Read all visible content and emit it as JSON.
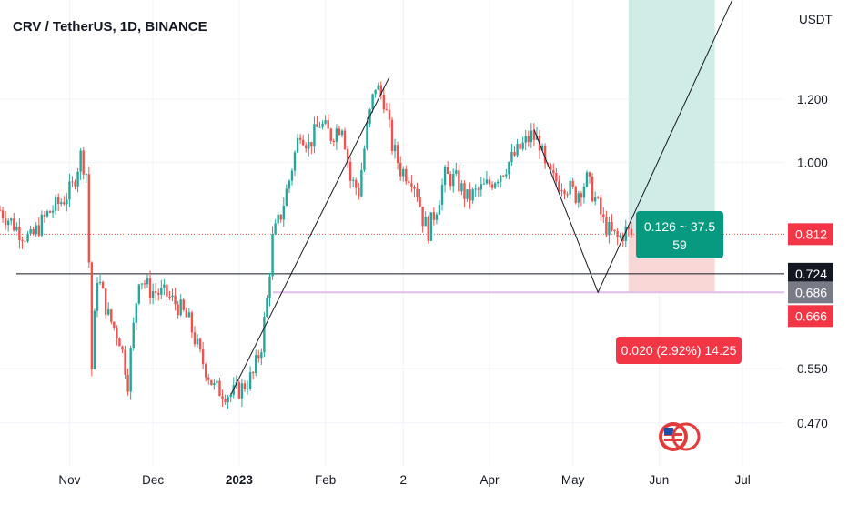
{
  "chart_data": {
    "type": "candlestick",
    "title": "CRV / TetherUS, 1D, BINANCE",
    "currency": "USDT",
    "y_scale": "log",
    "ylim": [
      0.415,
      1.6
    ],
    "y_ticks": [
      {
        "value": 1.2,
        "label": "1.200"
      },
      {
        "value": 1.0,
        "label": "1.000"
      },
      {
        "value": 0.55,
        "label": "0.550"
      },
      {
        "value": 0.47,
        "label": "0.470"
      }
    ],
    "x_range": [
      "2022-10-07",
      "2023-07-16"
    ],
    "x_ticks": [
      {
        "date": "2022-11-01",
        "label": "Nov",
        "bold": false
      },
      {
        "date": "2022-12-01",
        "label": "Dec",
        "bold": false
      },
      {
        "date": "2023-01-01",
        "label": "2023",
        "bold": true
      },
      {
        "date": "2023-02-01",
        "label": "Feb",
        "bold": false
      },
      {
        "date": "2023-03-01",
        "label": "2",
        "bold": false
      },
      {
        "date": "2023-04-01",
        "label": "Apr",
        "bold": false
      },
      {
        "date": "2023-05-01",
        "label": "May",
        "bold": false
      },
      {
        "date": "2023-06-01",
        "label": "Jun",
        "bold": false
      },
      {
        "date": "2023-07-01",
        "label": "Jul",
        "bold": false
      }
    ],
    "price_path": [
      [
        "2022-10-07",
        0.87
      ],
      [
        "2022-10-14",
        0.82
      ],
      [
        "2022-10-18",
        0.8
      ],
      [
        "2022-10-24",
        0.86
      ],
      [
        "2022-10-30",
        0.9
      ],
      [
        "2022-11-02",
        0.93
      ],
      [
        "2022-11-05",
        1.02
      ],
      [
        "2022-11-07",
        0.97
      ],
      [
        "2022-11-08",
        0.75
      ],
      [
        "2022-11-09",
        0.55
      ],
      [
        "2022-11-11",
        0.72
      ],
      [
        "2022-11-15",
        0.64
      ],
      [
        "2022-11-19",
        0.6
      ],
      [
        "2022-11-22",
        0.53
      ],
      [
        "2022-11-24",
        0.62
      ],
      [
        "2022-11-26",
        0.72
      ],
      [
        "2022-11-30",
        0.69
      ],
      [
        "2022-12-06",
        0.68
      ],
      [
        "2022-12-10",
        0.66
      ],
      [
        "2022-12-14",
        0.63
      ],
      [
        "2022-12-18",
        0.57
      ],
      [
        "2022-12-23",
        0.52
      ],
      [
        "2022-12-29",
        0.51
      ],
      [
        "2023-01-02",
        0.52
      ],
      [
        "2023-01-06",
        0.54
      ],
      [
        "2023-01-09",
        0.59
      ],
      [
        "2023-01-11",
        0.67
      ],
      [
        "2023-01-13",
        0.8
      ],
      [
        "2023-01-16",
        0.86
      ],
      [
        "2023-01-19",
        0.95
      ],
      [
        "2023-01-23",
        1.1
      ],
      [
        "2023-01-26",
        1.05
      ],
      [
        "2023-01-30",
        1.12
      ],
      [
        "2023-02-03",
        1.08
      ],
      [
        "2023-02-07",
        1.12
      ],
      [
        "2023-02-10",
        0.95
      ],
      [
        "2023-02-13",
        0.92
      ],
      [
        "2023-02-16",
        1.1
      ],
      [
        "2023-02-19",
        1.25
      ],
      [
        "2023-02-22",
        1.2
      ],
      [
        "2023-02-25",
        1.05
      ],
      [
        "2023-02-28",
        0.98
      ],
      [
        "2023-03-04",
        0.96
      ],
      [
        "2023-03-06",
        0.92
      ],
      [
        "2023-03-08",
        0.85
      ],
      [
        "2023-03-10",
        0.82
      ],
      [
        "2023-03-13",
        0.88
      ],
      [
        "2023-03-16",
        0.96
      ],
      [
        "2023-03-20",
        0.95
      ],
      [
        "2023-03-24",
        0.9
      ],
      [
        "2023-03-28",
        0.92
      ],
      [
        "2023-04-01",
        0.94
      ],
      [
        "2023-04-06",
        0.98
      ],
      [
        "2023-04-12",
        1.04
      ],
      [
        "2023-04-16",
        1.08
      ],
      [
        "2023-04-19",
        1.06
      ],
      [
        "2023-04-21",
        0.98
      ],
      [
        "2023-04-24",
        0.95
      ],
      [
        "2023-04-28",
        0.94
      ],
      [
        "2023-05-02",
        0.91
      ],
      [
        "2023-05-06",
        0.95
      ],
      [
        "2023-05-09",
        0.9
      ],
      [
        "2023-05-12",
        0.84
      ],
      [
        "2023-05-14",
        0.82
      ],
      [
        "2023-05-17",
        0.8
      ],
      [
        "2023-05-20",
        0.82
      ],
      [
        "2023-05-22",
        0.81
      ]
    ],
    "levels": [
      {
        "name": "horizontal",
        "value": 0.724,
        "label": "0.724"
      },
      {
        "name": "last",
        "value": 0.812,
        "label": "0.812"
      },
      {
        "name": "stop",
        "value": 0.686,
        "label": "0.686"
      },
      {
        "name": "target-extra",
        "value": 0.666,
        "label": "0.666"
      }
    ],
    "drawings": {
      "trend_line": [
        [
          "2022-12-29",
          0.51
        ],
        [
          "2023-02-24",
          1.28
        ]
      ],
      "harmonic": [
        [
          "2023-04-17",
          1.1
        ],
        [
          "2023-05-10",
          0.686
        ],
        [
          "2023-06-29",
          1.65
        ]
      ]
    },
    "position": {
      "start": "2023-05-21",
      "end": "2023-06-21",
      "entry": 0.812,
      "target": 1.65,
      "stop": 0.686,
      "target_label": "0.126 ~ 37.5",
      "target_label_2": "59",
      "stop_label": "0.020 (2.92%) 14.25"
    },
    "colors": {
      "up": "#26a69a",
      "down": "#ef5350",
      "profit_zone": "#cfece7",
      "loss_zone": "#f9d7d6",
      "label_profit": "#089981",
      "label_loss": "#f23645",
      "line": "#131722",
      "grid": "#f0f3fa",
      "stop_line": "#e1bee7",
      "last_tag": "#f23645",
      "horizontal_tag": "#131722",
      "stop_tag": "#787b86"
    }
  }
}
